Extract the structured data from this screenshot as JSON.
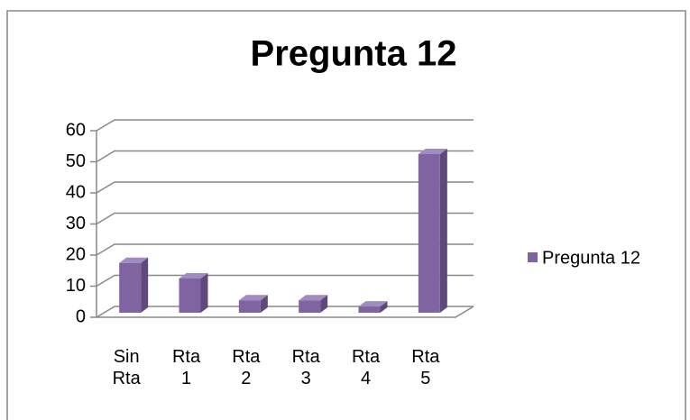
{
  "chart_data": {
    "type": "bar3d",
    "title": "Pregunta 12",
    "categories": [
      "Sin Rta",
      "Rta 1",
      "Rta 2",
      "Rta 3",
      "Rta 4",
      "Rta 5"
    ],
    "series": [
      {
        "name": "Pregunta 12",
        "color": "#8064a2",
        "values": [
          16,
          11,
          4,
          4,
          2,
          51
        ]
      }
    ],
    "ylim": [
      0,
      60
    ],
    "yticks": [
      0,
      10,
      20,
      30,
      40,
      50,
      60
    ],
    "grid": true,
    "legend": "right"
  }
}
